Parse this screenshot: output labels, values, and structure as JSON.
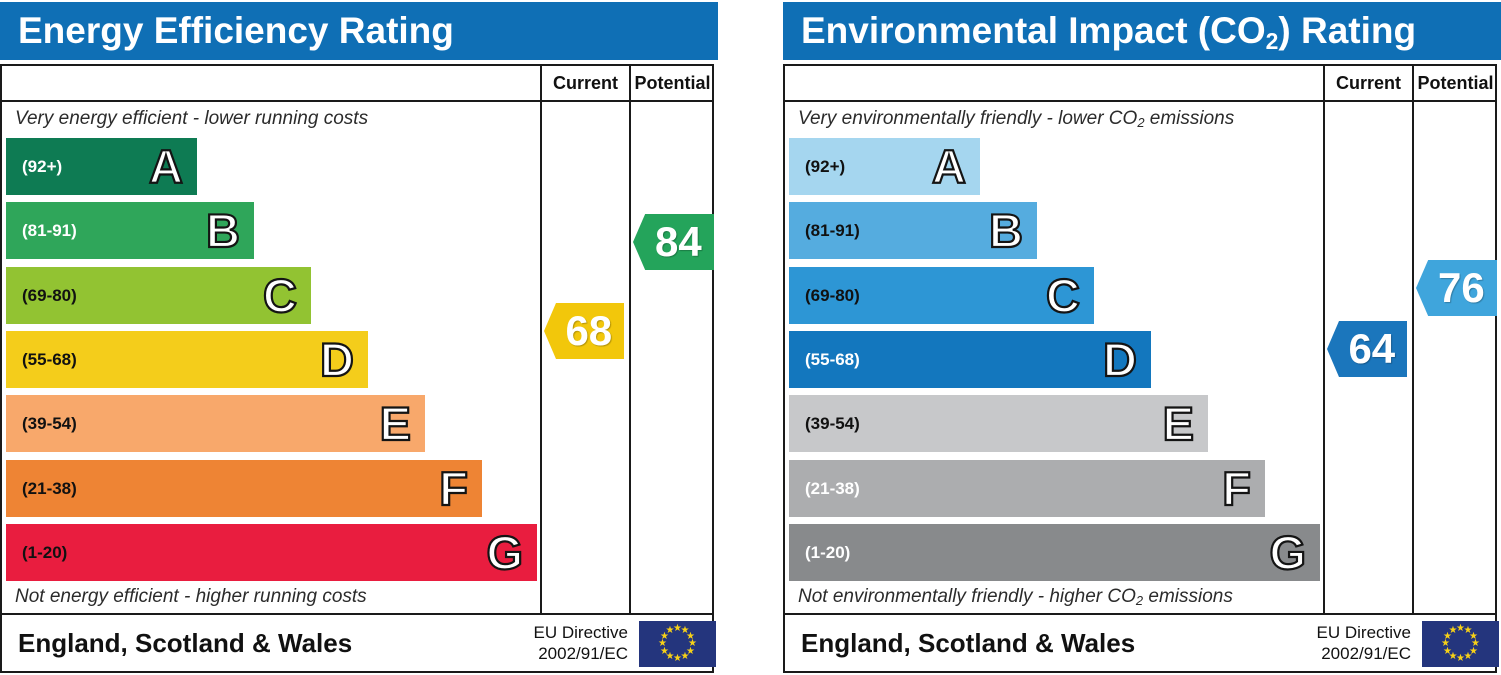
{
  "theme": {
    "header_blue": "#0f6fb5",
    "border": "#1a1a1a",
    "eu_flag_blue": "#24357d",
    "eu_star_gold": "#f7d117"
  },
  "left_panel": {
    "title": "Energy Efficiency Rating",
    "columns": {
      "current": "Current",
      "potential": "Potential"
    },
    "caption_top": "Very energy efficient - lower running costs",
    "caption_bottom": "Not energy efficient - higher running costs",
    "bands": [
      {
        "letter": "A",
        "range": "(92+)",
        "min": 92,
        "max": 100,
        "color": "#0e7b53",
        "text_color": "#ffffff"
      },
      {
        "letter": "B",
        "range": "(81-91)",
        "min": 81,
        "max": 91,
        "color": "#2fa65a",
        "text_color": "#ffffff"
      },
      {
        "letter": "C",
        "range": "(69-80)",
        "min": 69,
        "max": 80,
        "color": "#92c332",
        "text_color": "#111111"
      },
      {
        "letter": "D",
        "range": "(55-68)",
        "min": 55,
        "max": 68,
        "color": "#f4cd1b",
        "text_color": "#111111"
      },
      {
        "letter": "E",
        "range": "(39-54)",
        "min": 39,
        "max": 54,
        "color": "#f8a86b",
        "text_color": "#111111"
      },
      {
        "letter": "F",
        "range": "(21-38)",
        "min": 21,
        "max": 38,
        "color": "#ee8434",
        "text_color": "#111111"
      },
      {
        "letter": "G",
        "range": "(1-20)",
        "min": 1,
        "max": 20,
        "color": "#e91d3f",
        "text_color": "#111111"
      }
    ],
    "current": {
      "value": 68,
      "color": "#f2c70b"
    },
    "potential": {
      "value": 84,
      "color": "#24a45b"
    },
    "footer": {
      "region": "England, Scotland & Wales",
      "directive_line1": "EU Directive",
      "directive_line2": "2002/91/EC"
    }
  },
  "right_panel": {
    "title_prefix": "Environmental Impact (CO",
    "title_sub": "2",
    "title_suffix": ") Rating",
    "columns": {
      "current": "Current",
      "potential": "Potential"
    },
    "caption_top_prefix": "Very environmentally friendly - lower CO",
    "caption_top_sub": "2",
    "caption_top_suffix": " emissions",
    "caption_bottom_prefix": "Not environmentally friendly - higher CO",
    "caption_bottom_sub": "2",
    "caption_bottom_suffix": " emissions",
    "bands": [
      {
        "letter": "A",
        "range": "(92+)",
        "min": 92,
        "max": 100,
        "color": "#a5d6ef",
        "text_color": "#111111"
      },
      {
        "letter": "B",
        "range": "(81-91)",
        "min": 81,
        "max": 91,
        "color": "#55acdf",
        "text_color": "#111111"
      },
      {
        "letter": "C",
        "range": "(69-80)",
        "min": 69,
        "max": 80,
        "color": "#2d96d5",
        "text_color": "#111111"
      },
      {
        "letter": "D",
        "range": "(55-68)",
        "min": 55,
        "max": 68,
        "color": "#1377be",
        "text_color": "#ffffff"
      },
      {
        "letter": "E",
        "range": "(39-54)",
        "min": 39,
        "max": 54,
        "color": "#c7c8ca",
        "text_color": "#111111"
      },
      {
        "letter": "F",
        "range": "(21-38)",
        "min": 21,
        "max": 38,
        "color": "#acadaf",
        "text_color": "#ffffff"
      },
      {
        "letter": "G",
        "range": "(1-20)",
        "min": 1,
        "max": 20,
        "color": "#888a8c",
        "text_color": "#ffffff"
      }
    ],
    "current": {
      "value": 64,
      "color": "#1b76bc"
    },
    "potential": {
      "value": 76,
      "color": "#3fa5dc"
    },
    "footer": {
      "region": "England, Scotland & Wales",
      "directive_line1": "EU Directive",
      "directive_line2": "2002/91/EC"
    }
  },
  "chart_data": [
    {
      "type": "bar",
      "title": "Energy Efficiency Rating",
      "categories": [
        "A (92+)",
        "B (81-91)",
        "C (69-80)",
        "D (55-68)",
        "E (39-54)",
        "F (21-38)",
        "G (1-20)"
      ],
      "band_colors": [
        "#0e7b53",
        "#2fa65a",
        "#92c332",
        "#f4cd1b",
        "#f8a86b",
        "#ee8434",
        "#e91d3f"
      ],
      "series": [
        {
          "name": "Current",
          "values": [
            68
          ],
          "band": "D",
          "color": "#f2c70b"
        },
        {
          "name": "Potential",
          "values": [
            84
          ],
          "band": "B",
          "color": "#24a45b"
        }
      ],
      "annotations": [
        "Very energy efficient - lower running costs",
        "Not energy efficient - higher running costs",
        "England, Scotland & Wales",
        "EU Directive 2002/91/EC"
      ],
      "xlabel": "",
      "ylabel": "",
      "xlim": [
        1,
        100
      ]
    },
    {
      "type": "bar",
      "title": "Environmental Impact (CO2) Rating",
      "categories": [
        "A (92+)",
        "B (81-91)",
        "C (69-80)",
        "D (55-68)",
        "E (39-54)",
        "F (21-38)",
        "G (1-20)"
      ],
      "band_colors": [
        "#a5d6ef",
        "#55acdf",
        "#2d96d5",
        "#1377be",
        "#c7c8ca",
        "#acadaf",
        "#888a8c"
      ],
      "series": [
        {
          "name": "Current",
          "values": [
            64
          ],
          "band": "D",
          "color": "#1b76bc"
        },
        {
          "name": "Potential",
          "values": [
            76
          ],
          "band": "C",
          "color": "#3fa5dc"
        }
      ],
      "annotations": [
        "Very environmentally friendly - lower CO2 emissions",
        "Not environmentally friendly - higher CO2 emissions",
        "England, Scotland & Wales",
        "EU Directive 2002/91/EC"
      ],
      "xlabel": "",
      "ylabel": "",
      "xlim": [
        1,
        100
      ]
    }
  ]
}
